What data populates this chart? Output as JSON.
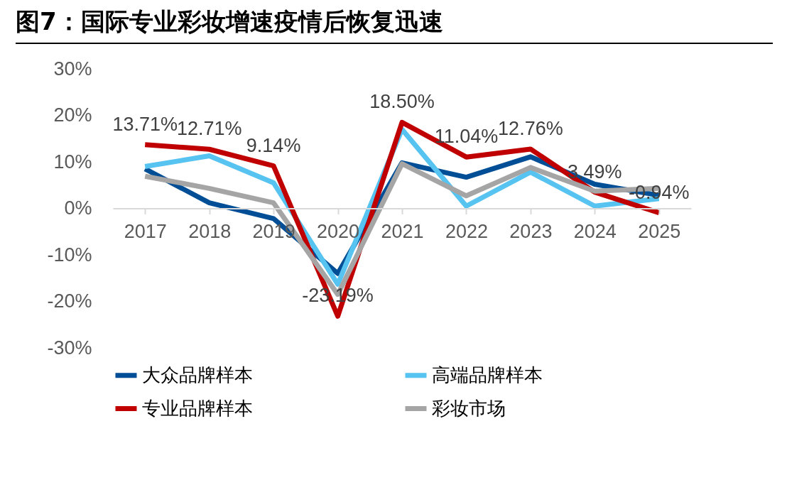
{
  "chart_data": {
    "type": "line",
    "title": "图7：国际专业彩妆增速疫情后恢复迅速",
    "categories": [
      "2017",
      "2018",
      "2019",
      "2020",
      "2021",
      "2022",
      "2023",
      "2024",
      "2025"
    ],
    "series": [
      {
        "name": "大众品牌样本",
        "color": "#004e96",
        "values": [
          8.5,
          1.2,
          -2.2,
          -14.0,
          9.8,
          6.7,
          11.1,
          5.2,
          2.8
        ]
      },
      {
        "name": "高端品牌样本",
        "color": "#56c3f0",
        "values": [
          9.0,
          11.3,
          5.5,
          -16.3,
          17.0,
          0.5,
          7.8,
          0.5,
          2.1
        ]
      },
      {
        "name": "专业品牌样本",
        "color": "#c00000",
        "values": [
          13.71,
          12.71,
          9.14,
          -23.19,
          18.5,
          11.04,
          12.76,
          3.49,
          -0.94
        ],
        "value_labels": [
          "13.71%",
          "12.71%",
          "9.14%",
          "-23.19%",
          "18.50%",
          "11.04%",
          "12.76%",
          "3.49%",
          "-0.94%"
        ]
      },
      {
        "name": "彩妆市场",
        "color": "#a5a5a5",
        "values": [
          6.9,
          4.3,
          1.2,
          -18.5,
          9.6,
          2.7,
          8.8,
          3.7,
          4.3
        ]
      }
    ],
    "ylim": [
      -30,
      30
    ],
    "yticks": [
      {
        "value": -30,
        "label": "-30%"
      },
      {
        "value": -20,
        "label": "-20%"
      },
      {
        "value": -10,
        "label": "-10%"
      },
      {
        "value": 0,
        "label": "0%"
      },
      {
        "value": 10,
        "label": "10%"
      },
      {
        "value": 20,
        "label": "20%"
      },
      {
        "value": 30,
        "label": "30%"
      }
    ],
    "grid": false,
    "legend": "bottom",
    "marker": "none",
    "line_style": "solid"
  }
}
